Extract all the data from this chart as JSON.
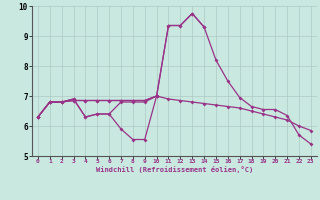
{
  "xlabel": "Windchill (Refroidissement éolien,°C)",
  "ylim": [
    5,
    10
  ],
  "xlim": [
    -0.5,
    23.5
  ],
  "yticks": [
    5,
    6,
    7,
    8,
    9,
    10
  ],
  "xticks": [
    0,
    1,
    2,
    3,
    4,
    5,
    6,
    7,
    8,
    9,
    10,
    11,
    12,
    13,
    14,
    15,
    16,
    17,
    18,
    19,
    20,
    21,
    22,
    23
  ],
  "bg_color": "#c8e8e0",
  "grid_color": "#b0c8c4",
  "line_color": "#993388",
  "markersize": 2.0,
  "linewidth": 0.9,
  "lines": [
    [
      6.3,
      6.8,
      6.8,
      6.9,
      6.3,
      6.4,
      6.4,
      5.9,
      5.55,
      5.55,
      7.0,
      9.35,
      9.35,
      9.75,
      9.3,
      null,
      null,
      null,
      null,
      null,
      null,
      null,
      null,
      null
    ],
    [
      6.3,
      6.8,
      6.8,
      6.9,
      6.3,
      6.4,
      6.4,
      6.8,
      6.8,
      6.8,
      7.0,
      null,
      null,
      null,
      null,
      null,
      null,
      null,
      null,
      null,
      null,
      null,
      null,
      null
    ],
    [
      6.3,
      6.8,
      6.8,
      6.85,
      6.85,
      6.85,
      6.85,
      6.85,
      6.85,
      6.85,
      7.0,
      9.35,
      9.35,
      9.75,
      9.3,
      8.2,
      7.5,
      6.95,
      6.65,
      6.55,
      6.55,
      6.35,
      5.7,
      5.4
    ],
    [
      6.3,
      6.8,
      6.8,
      6.85,
      6.85,
      6.85,
      6.85,
      6.85,
      6.85,
      6.85,
      7.0,
      6.9,
      6.85,
      6.8,
      6.75,
      6.7,
      6.65,
      6.6,
      6.5,
      6.4,
      6.3,
      6.2,
      6.0,
      5.85
    ]
  ]
}
